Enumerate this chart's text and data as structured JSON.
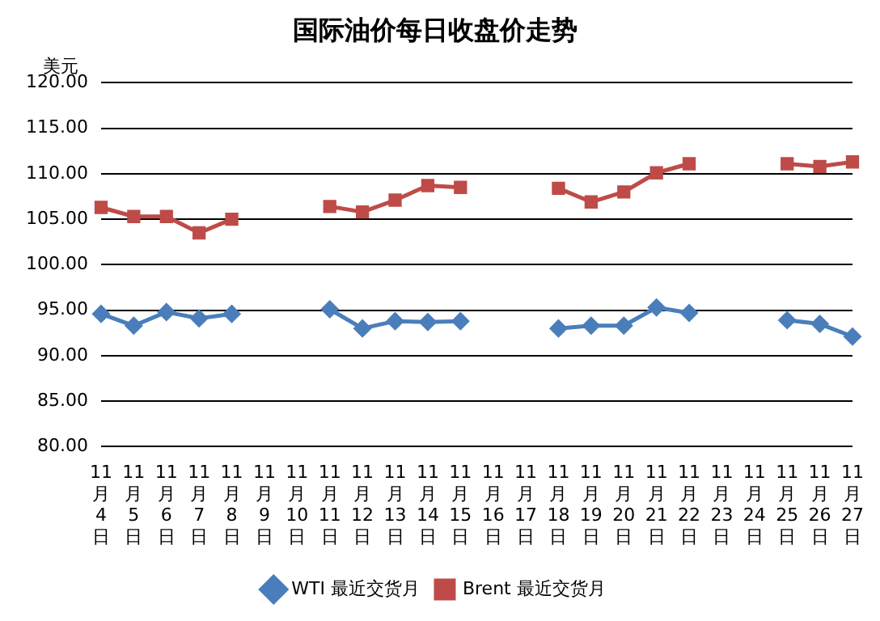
{
  "chart_data": {
    "type": "line",
    "title": "国际油价每日收盘价走势",
    "ylabel": "美元",
    "categories": [
      "11月4日",
      "11月5日",
      "11月6日",
      "11月7日",
      "11月8日",
      "11月9日",
      "11月10日",
      "11月11日",
      "11月12日",
      "11月13日",
      "11月14日",
      "11月15日",
      "11月16日",
      "11月17日",
      "11月18日",
      "11月19日",
      "11月20日",
      "11月21日",
      "11月22日",
      "11月23日",
      "11月24日",
      "11月25日",
      "11月26日",
      "11月27日"
    ],
    "series": [
      {
        "name": "WTI 最近交货月",
        "color": "#4a7ebb",
        "marker": "diamond",
        "values": [
          94.6,
          93.3,
          94.8,
          94.1,
          94.6,
          null,
          null,
          95.1,
          93.0,
          93.8,
          93.7,
          93.8,
          null,
          null,
          93.0,
          93.3,
          93.3,
          95.3,
          94.7,
          null,
          null,
          93.9,
          93.5,
          92.1
        ]
      },
      {
        "name": "Brent 最近交货月",
        "color": "#be4b48",
        "marker": "square",
        "values": [
          106.3,
          105.3,
          105.3,
          103.5,
          105.0,
          null,
          null,
          106.4,
          105.8,
          107.1,
          108.7,
          108.5,
          null,
          null,
          108.4,
          106.9,
          108.0,
          110.1,
          111.1,
          null,
          null,
          111.1,
          110.8,
          111.3
        ]
      }
    ],
    "ylim": [
      80,
      120
    ],
    "yticks": [
      {
        "value": 80,
        "label": "80.00"
      },
      {
        "value": 85,
        "label": "85.00"
      },
      {
        "value": 90,
        "label": "90.00"
      },
      {
        "value": 95,
        "label": "95.00"
      },
      {
        "value": 100,
        "label": "100.00"
      },
      {
        "value": 105,
        "label": "105.00"
      },
      {
        "value": 110,
        "label": "110.00"
      },
      {
        "value": 115,
        "label": "115.00"
      },
      {
        "value": 120,
        "label": "120.00"
      }
    ],
    "grid": "y",
    "legend": "bottom",
    "line_style": "solid"
  }
}
